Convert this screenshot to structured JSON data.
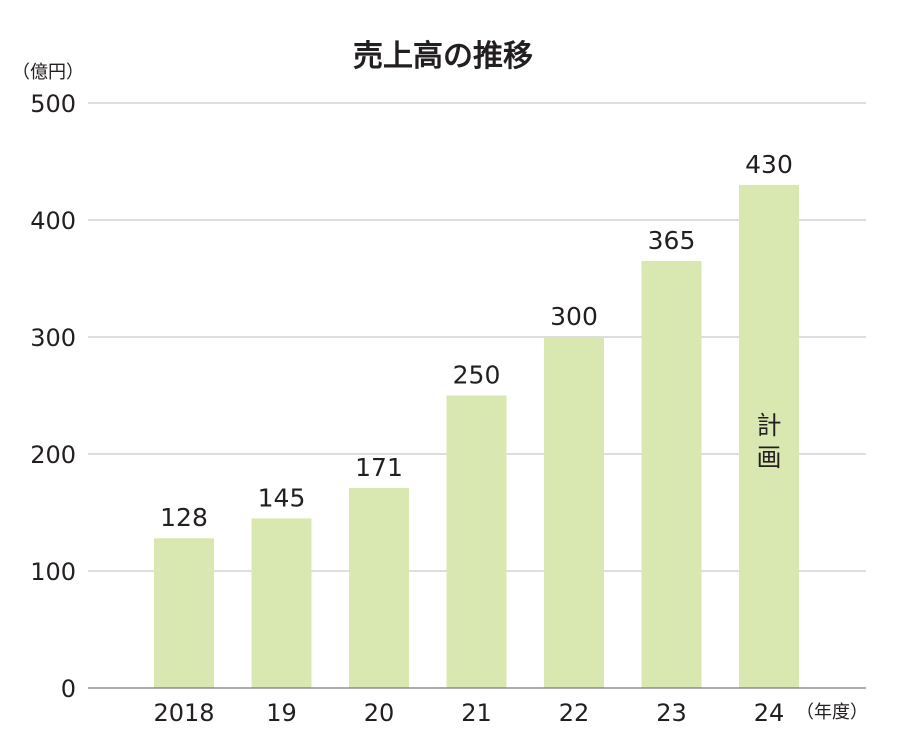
{
  "chart_data": {
    "type": "bar",
    "title": "売上高の推移",
    "y_unit_label": "（億円）",
    "x_unit_label": "（年度）",
    "categories": [
      "2018",
      "19",
      "20",
      "21",
      "22",
      "23",
      "24"
    ],
    "values": [
      128,
      145,
      171,
      250,
      300,
      365,
      430
    ],
    "ylim": [
      0,
      500
    ],
    "yticks": [
      0,
      100,
      200,
      300,
      400,
      500
    ],
    "grid": true,
    "bar_color": "#d9e8b0",
    "annotations": [
      {
        "category": "24",
        "text": "計画",
        "placement": "inside-bar"
      }
    ]
  }
}
